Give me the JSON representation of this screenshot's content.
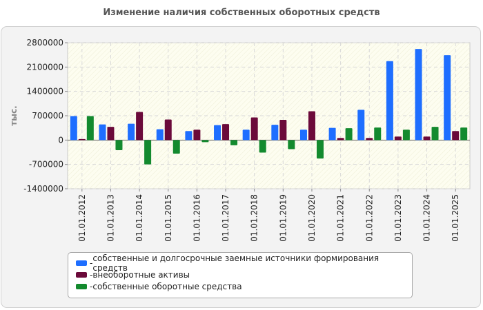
{
  "title": "Изменение наличия собственных оборотных средств",
  "legend_prefix": "- ",
  "chart_data": {
    "type": "bar",
    "title": "Изменение наличия собственных оборотных средств",
    "ylabel": "тыс.",
    "xlabel": "",
    "ylim": [
      -1400000,
      2800000
    ],
    "yticks": [
      2800000,
      2100000,
      1400000,
      700000,
      0,
      -700000,
      -1400000
    ],
    "ytick_labels": [
      "2800000",
      "2100000",
      "1400000",
      "700000",
      "0",
      "-700000",
      "-1400000"
    ],
    "grid": true,
    "legend_position": "bottom",
    "categories": [
      "01.01.2012",
      "01.01.2013",
      "01.01.2014",
      "01.01.2015",
      "01.01.2016",
      "01.01.2017",
      "01.01.2018",
      "01.01.2019",
      "01.01.2020",
      "01.01.2021",
      "01.01.2022",
      "01.01.2023",
      "01.01.2024",
      "01.01.2025"
    ],
    "series": [
      {
        "name": "собственные и долгосрочные заемные источники формирования средств",
        "color": "#1e6eff",
        "values": [
          690000,
          450000,
          470000,
          310000,
          260000,
          430000,
          300000,
          440000,
          300000,
          350000,
          870000,
          2270000,
          2620000,
          2440000
        ]
      },
      {
        "name": "внеоборотные активы",
        "color": "#6b0a3a",
        "values": [
          30000,
          380000,
          810000,
          590000,
          300000,
          460000,
          650000,
          580000,
          830000,
          60000,
          60000,
          100000,
          100000,
          260000
        ]
      },
      {
        "name": "собственные оборотные средства",
        "color": "#138a2e",
        "values": [
          690000,
          -290000,
          -700000,
          -390000,
          -60000,
          -150000,
          -360000,
          -260000,
          -530000,
          340000,
          360000,
          300000,
          380000,
          360000
        ]
      }
    ]
  }
}
